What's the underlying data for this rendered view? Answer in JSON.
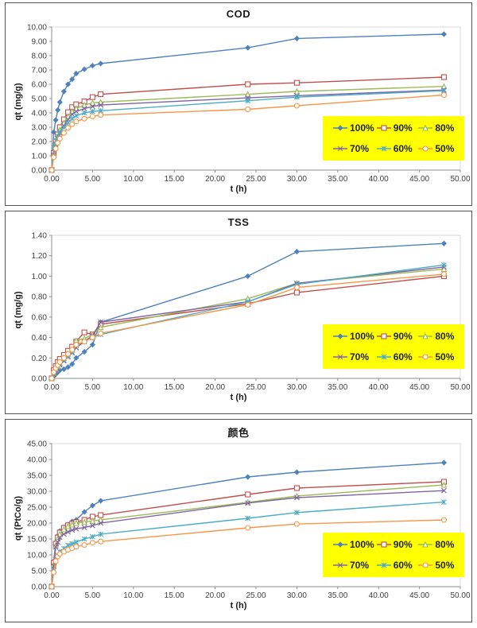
{
  "page_bg": "#ffffff",
  "legend_bg": "#FFFF00",
  "series_style": {
    "names": [
      "100%",
      "90%",
      "80%",
      "70%",
      "60%",
      "50%"
    ],
    "colors": [
      "#4F81BD",
      "#C0504D",
      "#9BBB59",
      "#8064A2",
      "#4BACC6",
      "#F79646"
    ],
    "markers": [
      "diamond",
      "square",
      "triangle",
      "x",
      "star",
      "circle"
    ]
  },
  "chart_data": [
    {
      "type": "line",
      "title": "COD",
      "xlabel": "t (h)",
      "ylabel": "qt (mg/g)",
      "xlim": [
        0,
        50
      ],
      "xstep": 5,
      "ylim": [
        0,
        10
      ],
      "ystep": 1,
      "grid": false,
      "legend_position": "inside-right",
      "legend_labels": [
        "100%",
        "90%",
        "80%",
        "70%",
        "60%",
        "50%"
      ],
      "x": [
        0,
        0.25,
        0.5,
        0.75,
        1,
        1.5,
        2,
        2.5,
        3,
        4,
        5,
        6,
        24,
        30,
        48
      ],
      "series": [
        {
          "name": "100%",
          "values": [
            0,
            2.65,
            3.5,
            4.2,
            4.75,
            5.5,
            6.0,
            6.35,
            6.75,
            7.05,
            7.3,
            7.45,
            8.55,
            9.2,
            9.5
          ]
        },
        {
          "name": "90%",
          "values": [
            0,
            1.2,
            2.0,
            2.5,
            3.0,
            3.55,
            4.05,
            4.4,
            4.6,
            4.8,
            5.1,
            5.3,
            6.0,
            6.1,
            6.5
          ]
        },
        {
          "name": "80%",
          "values": [
            0,
            1.1,
            1.9,
            2.35,
            2.8,
            3.3,
            3.75,
            4.1,
            4.3,
            4.55,
            4.7,
            4.75,
            5.3,
            5.5,
            5.85
          ]
        },
        {
          "name": "70%",
          "values": [
            0,
            1.05,
            1.8,
            2.2,
            2.6,
            3.1,
            3.55,
            3.9,
            4.1,
            4.3,
            4.45,
            4.55,
            5.05,
            5.2,
            5.6
          ]
        },
        {
          "name": "60%",
          "values": [
            0,
            1.6,
            2.05,
            2.35,
            2.65,
            3.0,
            3.3,
            3.6,
            3.8,
            4.0,
            4.1,
            4.15,
            4.85,
            5.1,
            5.55
          ]
        },
        {
          "name": "50%",
          "values": [
            0,
            0.9,
            1.5,
            1.9,
            2.2,
            2.6,
            2.95,
            3.2,
            3.4,
            3.6,
            3.75,
            3.85,
            4.25,
            4.5,
            5.25
          ]
        }
      ]
    },
    {
      "type": "line",
      "title": "TSS",
      "xlabel": "t (h)",
      "ylabel": "qt (mg/g)",
      "xlim": [
        0,
        50
      ],
      "xstep": 5,
      "ylim": [
        0,
        1.4
      ],
      "ystep": 0.2,
      "grid": false,
      "legend_position": "inside-right",
      "legend_labels": [
        "100%",
        "90%",
        "80%",
        "70%",
        "60%",
        "50%"
      ],
      "x": [
        0,
        0.25,
        0.5,
        0.75,
        1,
        1.5,
        2,
        2.5,
        3,
        4,
        5,
        6,
        24,
        30,
        48
      ],
      "series": [
        {
          "name": "100%",
          "values": [
            0,
            0.02,
            0.04,
            0.06,
            0.08,
            0.09,
            0.11,
            0.14,
            0.2,
            0.26,
            0.33,
            0.55,
            1.0,
            1.24,
            1.32
          ]
        },
        {
          "name": "90%",
          "values": [
            0,
            0.08,
            0.12,
            0.16,
            0.19,
            0.23,
            0.27,
            0.31,
            0.36,
            0.45,
            0.43,
            0.53,
            0.73,
            0.84,
            1.0
          ]
        },
        {
          "name": "80%",
          "values": [
            0,
            0.05,
            0.09,
            0.12,
            0.15,
            0.2,
            0.24,
            0.28,
            0.37,
            0.39,
            0.43,
            0.5,
            0.78,
            0.93,
            1.07
          ]
        },
        {
          "name": "70%",
          "values": [
            0,
            0.04,
            0.07,
            0.1,
            0.13,
            0.17,
            0.21,
            0.25,
            0.3,
            0.36,
            0.42,
            0.55,
            0.75,
            0.93,
            1.09
          ]
        },
        {
          "name": "60%",
          "values": [
            0,
            0.05,
            0.08,
            0.11,
            0.14,
            0.18,
            0.22,
            0.26,
            0.32,
            0.36,
            0.4,
            0.43,
            0.75,
            0.92,
            1.11
          ]
        },
        {
          "name": "50%",
          "values": [
            0,
            0.06,
            0.1,
            0.13,
            0.16,
            0.2,
            0.24,
            0.28,
            0.33,
            0.36,
            0.4,
            0.44,
            0.72,
            0.89,
            1.02
          ]
        }
      ]
    },
    {
      "type": "line",
      "title": "颜色",
      "xlabel": "t (h)",
      "ylabel": "qt (PtCo/g)",
      "xlim": [
        0,
        50
      ],
      "xstep": 5,
      "ylim": [
        0,
        45
      ],
      "ystep": 5,
      "grid": false,
      "legend_position": "inside-right",
      "legend_labels": [
        "100%",
        "90%",
        "80%",
        "70%",
        "60%",
        "50%"
      ],
      "x": [
        0,
        0.25,
        0.5,
        0.75,
        1,
        1.5,
        2,
        2.5,
        3,
        4,
        5,
        6,
        24,
        30,
        48
      ],
      "series": [
        {
          "name": "100%",
          "values": [
            0,
            8.0,
            14.0,
            16.0,
            17.5,
            18.7,
            19.5,
            20.5,
            21.0,
            23.5,
            25.5,
            27.0,
            34.5,
            36.0,
            39.0
          ]
        },
        {
          "name": "90%",
          "values": [
            0,
            7.5,
            13.5,
            15.5,
            17.0,
            18.5,
            19.3,
            19.8,
            20.3,
            21.0,
            22.0,
            22.5,
            29.0,
            31.0,
            33.0
          ]
        },
        {
          "name": "80%",
          "values": [
            0,
            7.0,
            13.0,
            15.0,
            16.5,
            18.0,
            19.0,
            19.5,
            20.0,
            20.3,
            20.7,
            21.0,
            26.5,
            28.5,
            32.0
          ]
        },
        {
          "name": "70%",
          "values": [
            0,
            6.5,
            12.5,
            14.0,
            15.5,
            16.5,
            17.2,
            17.8,
            18.2,
            18.6,
            19.2,
            20.0,
            26.3,
            28.0,
            30.2
          ]
        },
        {
          "name": "60%",
          "values": [
            0,
            5.0,
            8.5,
            9.8,
            11.0,
            12.0,
            13.0,
            13.5,
            14.0,
            15.0,
            15.7,
            16.5,
            21.5,
            23.3,
            26.6
          ]
        },
        {
          "name": "50%",
          "values": [
            0,
            4.5,
            8.0,
            9.5,
            10.3,
            11.0,
            11.6,
            12.1,
            12.6,
            13.1,
            13.8,
            14.2,
            18.5,
            19.7,
            21.0
          ]
        }
      ]
    }
  ]
}
